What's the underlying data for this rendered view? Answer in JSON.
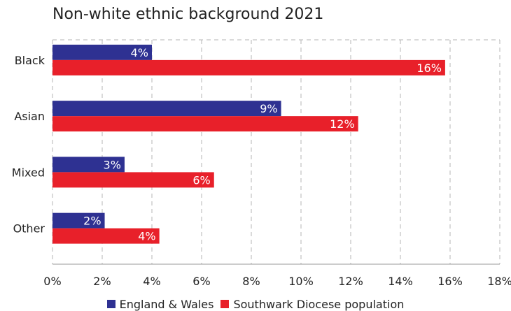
{
  "chart_data": {
    "type": "bar",
    "orientation": "horizontal",
    "title": "Non-white ethnic background 2021",
    "categories": [
      "Black",
      "Asian",
      "Mixed",
      "Other"
    ],
    "series": [
      {
        "name": "England & Wales",
        "color": "#2e3192",
        "values": [
          4,
          9.2,
          2.9,
          2.1
        ],
        "labels": [
          "4%",
          "9%",
          "3%",
          "2%"
        ]
      },
      {
        "name": "Southwark Diocese population",
        "color": "#e8202a",
        "values": [
          15.8,
          12.3,
          6.5,
          4.3
        ],
        "labels": [
          "16%",
          "12%",
          "6%",
          "4%"
        ]
      }
    ],
    "x_ticks": [
      "0%",
      "2%",
      "4%",
      "6%",
      "8%",
      "10%",
      "12%",
      "14%",
      "16%",
      "18%"
    ],
    "xlim": [
      0,
      18
    ],
    "grid": true,
    "legend_position": "bottom"
  }
}
